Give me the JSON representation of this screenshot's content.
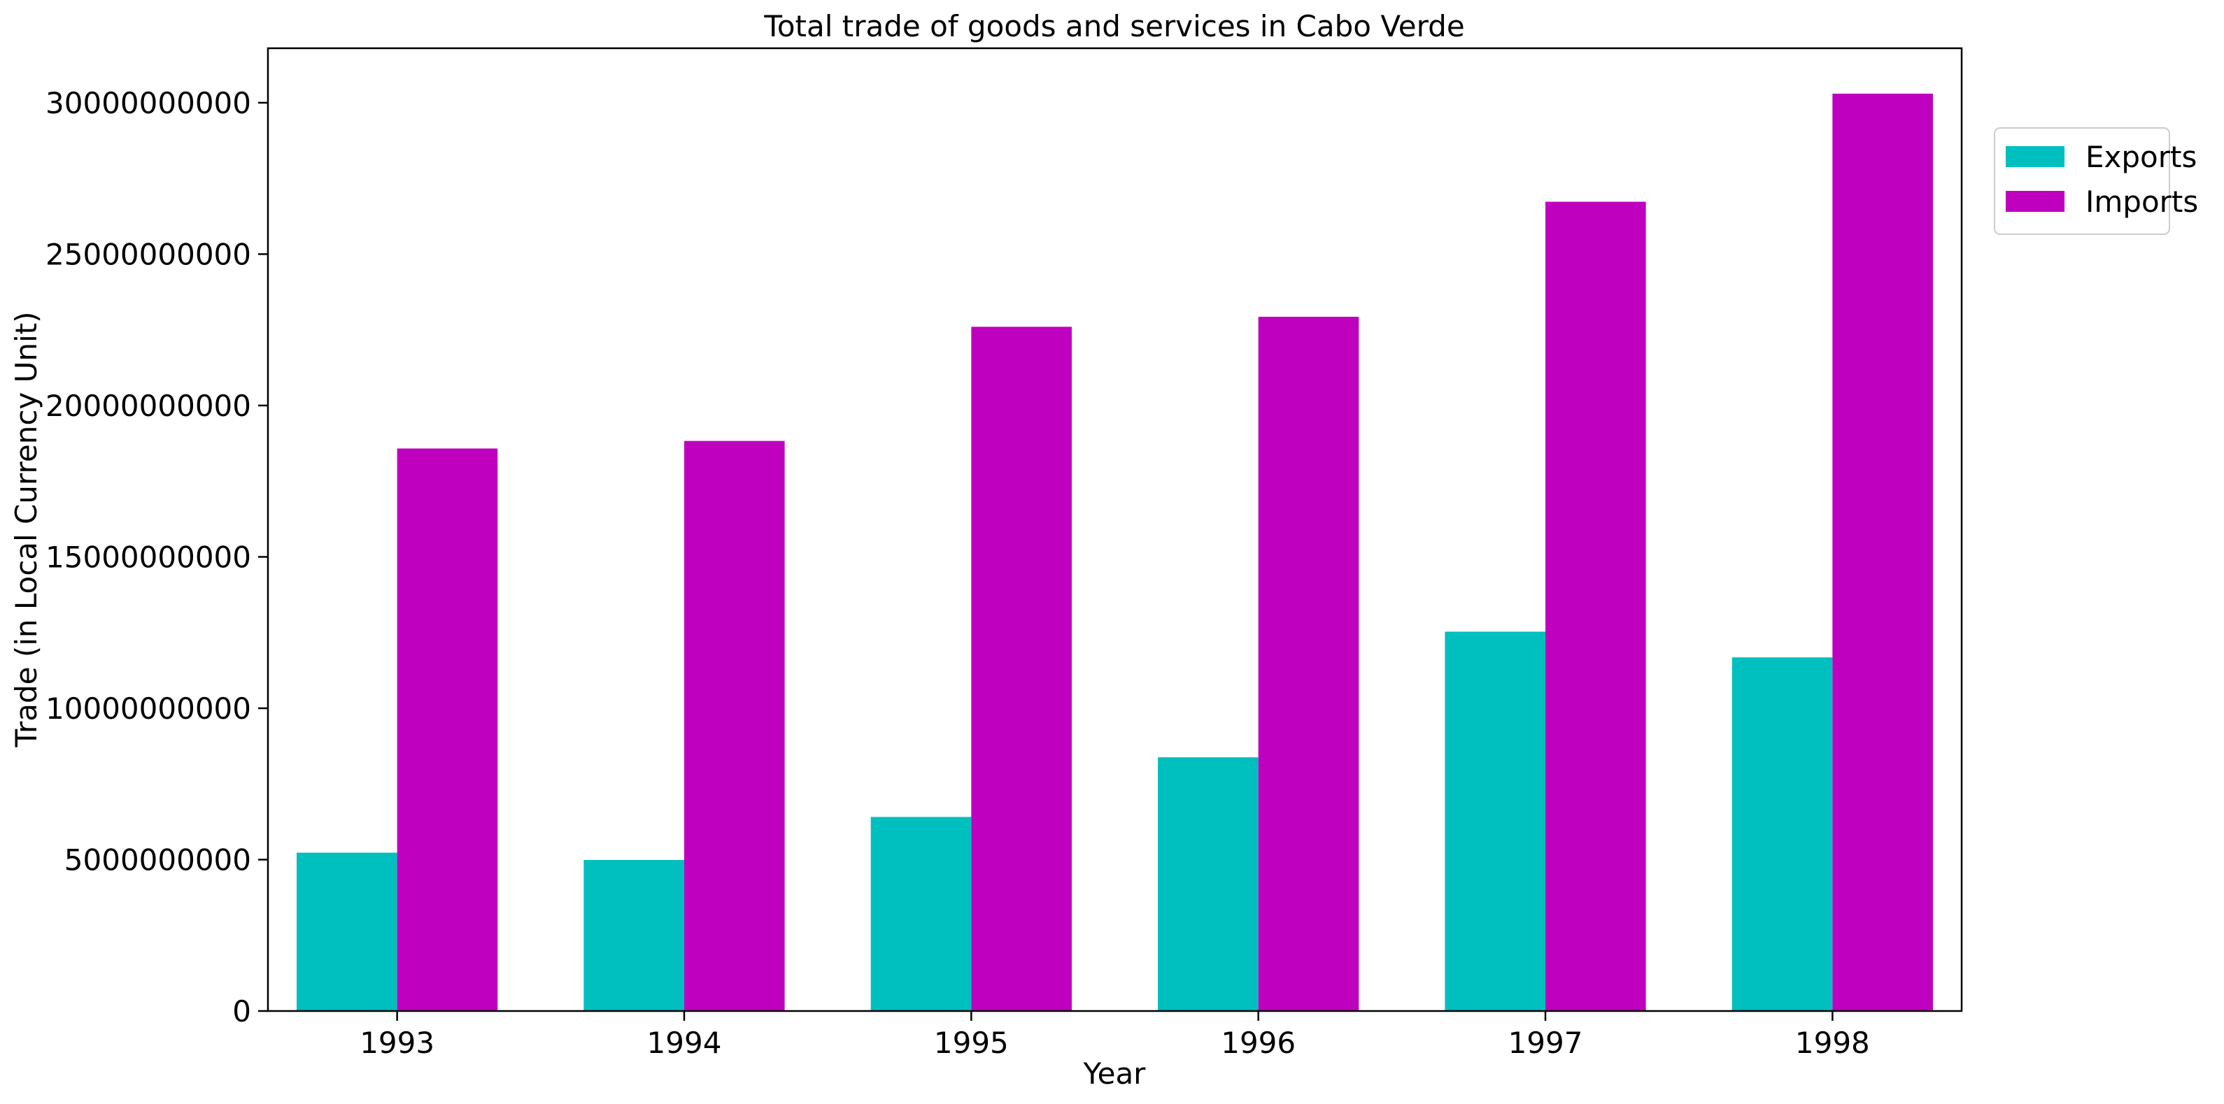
{
  "chart_data": {
    "type": "bar",
    "title": "Total trade of goods and services in Cabo Verde",
    "xlabel": "Year",
    "ylabel": "Trade (in Local Currency Unit)",
    "categories": [
      "1993",
      "1994",
      "1995",
      "1996",
      "1997",
      "1998"
    ],
    "series": [
      {
        "name": "Exports",
        "color": "#00bfbf",
        "values": [
          5230000000,
          4990000000,
          6410000000,
          8380000000,
          12530000000,
          11680000000
        ]
      },
      {
        "name": "Imports",
        "color": "#bf00bf",
        "values": [
          18580000000,
          18830000000,
          22600000000,
          22930000000,
          26730000000,
          30300000000
        ]
      }
    ],
    "ylim": [
      0,
      31800000000
    ],
    "yticks": [
      0,
      5000000000,
      10000000000,
      15000000000,
      20000000000,
      25000000000,
      30000000000
    ],
    "ytick_labels": [
      "0",
      "5000000000",
      "10000000000",
      "15000000000",
      "20000000000",
      "25000000000",
      "30000000000"
    ],
    "grid": false,
    "legend_position": "top-right-outside"
  }
}
